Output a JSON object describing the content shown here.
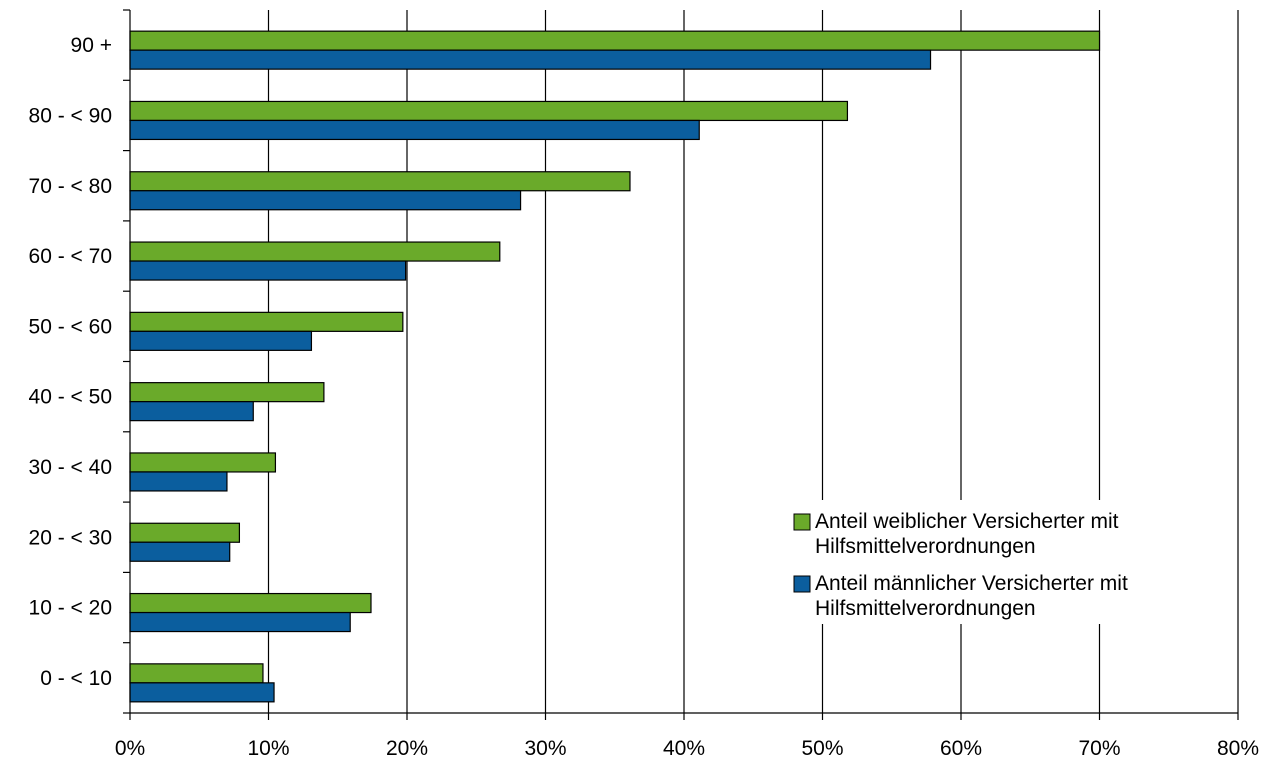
{
  "chart_data": {
    "type": "bar",
    "orientation": "horizontal",
    "categories": [
      "90 +",
      "80 - < 90",
      "70 - < 80",
      "60 - < 70",
      "50 - < 60",
      "40 - < 50",
      "30 - < 40",
      "20 - < 30",
      "10 - < 20",
      "0 - < 10"
    ],
    "series": [
      {
        "name": "Anteil weiblicher Versicherter mit Hilfsmittelverordnungen",
        "legend_lines": [
          "Anteil weiblicher Versicherter mit",
          "Hilfsmittelverordnungen"
        ],
        "color": "#6aaa2a",
        "values": [
          0.7,
          0.518,
          0.361,
          0.267,
          0.197,
          0.14,
          0.105,
          0.079,
          0.174,
          0.096
        ]
      },
      {
        "name": "Anteil männlicher Versicherter mit Hilfsmittelverordnungen",
        "legend_lines": [
          "Anteil männlicher Versicherter mit",
          "Hilfsmittelverordnungen"
        ],
        "color": "#0b5e9e",
        "values": [
          0.578,
          0.411,
          0.282,
          0.199,
          0.131,
          0.089,
          0.07,
          0.072,
          0.159,
          0.104
        ]
      }
    ],
    "xlim": [
      0,
      0.8
    ],
    "x_ticks": [
      "0%",
      "10%",
      "20%",
      "30%",
      "40%",
      "50%",
      "60%",
      "70%",
      "80%"
    ],
    "grid": "vertical",
    "legend_position": "right, lower-middle"
  }
}
